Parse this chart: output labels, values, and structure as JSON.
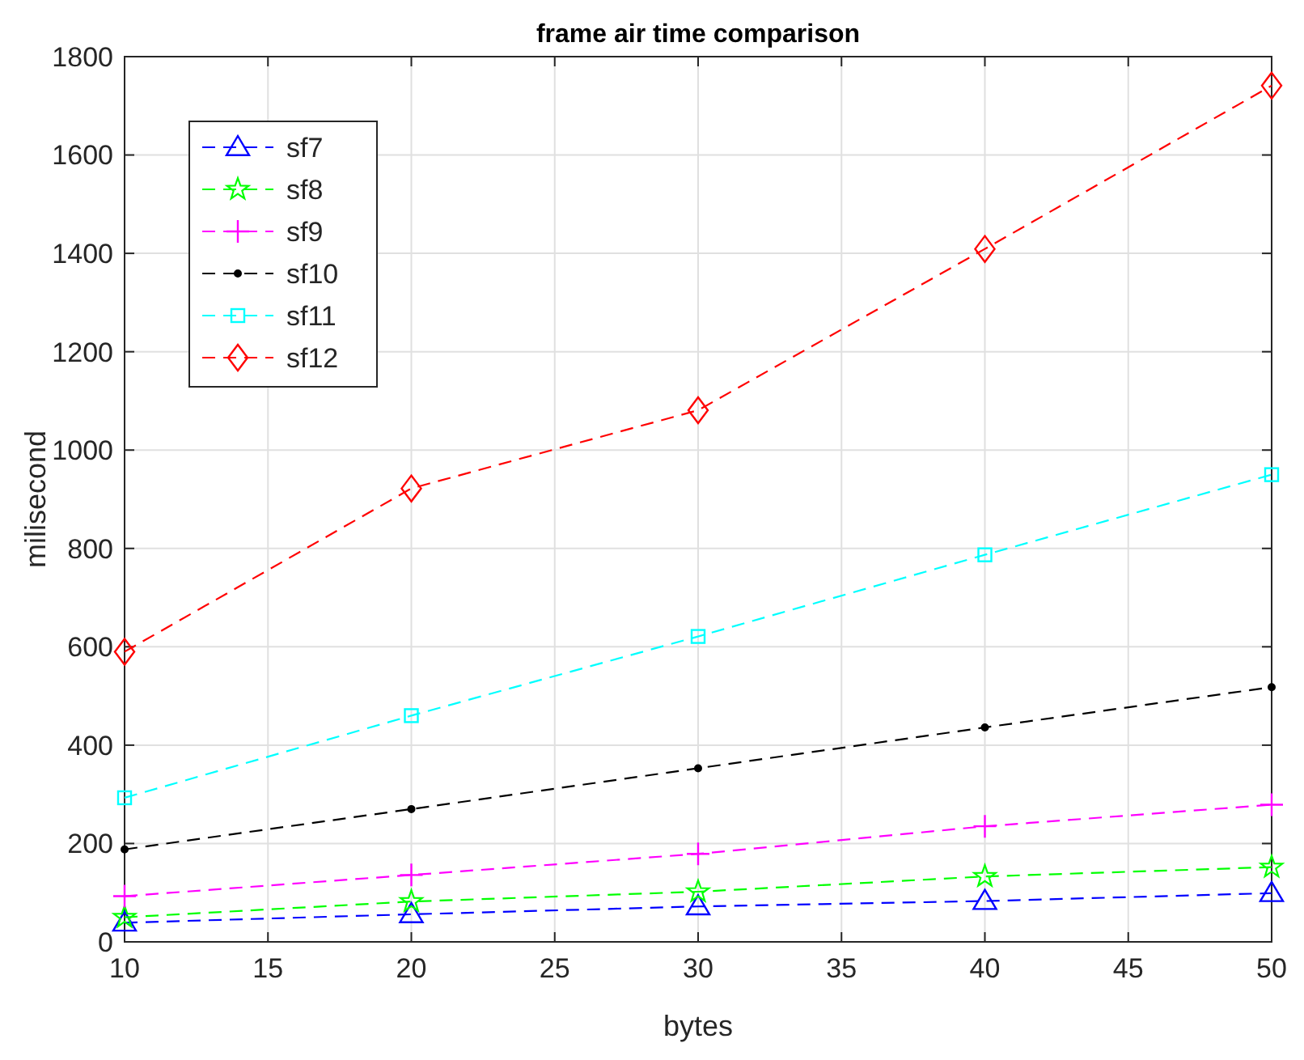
{
  "chart_data": {
    "type": "line",
    "title": "frame air time comparison",
    "xlabel": "bytes",
    "ylabel": "milisecond",
    "x": [
      10,
      20,
      30,
      40,
      50
    ],
    "xlim": [
      10,
      50
    ],
    "xticks": [
      10,
      15,
      20,
      25,
      30,
      35,
      40,
      45,
      50
    ],
    "ylim": [
      0,
      1800
    ],
    "yticks": [
      0,
      200,
      400,
      600,
      800,
      1000,
      1200,
      1400,
      1600,
      1800
    ],
    "grid": true,
    "legend": "top left",
    "line_style": "dashed",
    "series": [
      {
        "name": "sf7",
        "color": "#0000ff",
        "marker": "triangle",
        "values": [
          39,
          56,
          72,
          83,
          99
        ]
      },
      {
        "name": "sf8",
        "color": "#00ff00",
        "marker": "star",
        "values": [
          50,
          82,
          102,
          133,
          152
        ]
      },
      {
        "name": "sf9",
        "color": "#ff00ff",
        "marker": "cross",
        "values": [
          93,
          136,
          179,
          235,
          279
        ]
      },
      {
        "name": "sf10",
        "color": "#000000",
        "marker": "circle",
        "values": [
          188,
          270,
          353,
          436,
          518
        ]
      },
      {
        "name": "sf11",
        "color": "#00ffff",
        "marker": "square",
        "values": [
          293,
          460,
          621,
          787,
          950
        ]
      },
      {
        "name": "sf12",
        "color": "#ff0000",
        "marker": "diamond",
        "values": [
          590,
          922,
          1081,
          1409,
          1741
        ]
      }
    ]
  }
}
